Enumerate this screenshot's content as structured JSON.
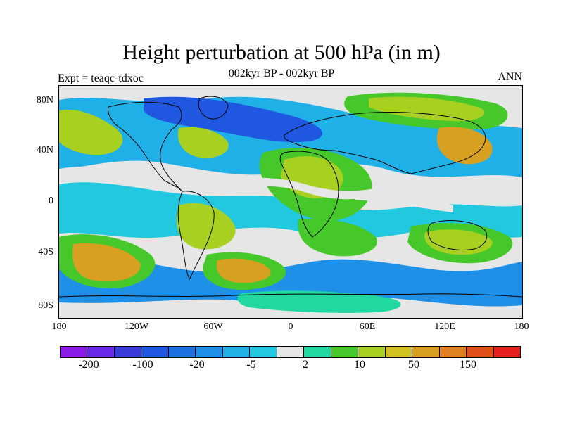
{
  "title": "Height perturbation at 500 hPa (in m)",
  "subtitle_left": "Expt = teaqc-tdxoc",
  "subtitle_center": "002kyr BP - 002kyr BP",
  "subtitle_right": "ANN",
  "lat_labels": [
    "80N",
    "40N",
    "0",
    "40S",
    "80S"
  ],
  "lon_labels": [
    "180",
    "120W",
    "60W",
    "0",
    "60E",
    "120E",
    "180"
  ],
  "colorbar": {
    "colors": [
      "#8b1be6",
      "#6a28e8",
      "#3b3bd9",
      "#1f57e0",
      "#1e6fe0",
      "#1e90e8",
      "#1fb0e8",
      "#21c8e0",
      "#e6e6e6",
      "#20d8a0",
      "#47c82a",
      "#a8d020",
      "#d0c020",
      "#d8a020",
      "#e08020",
      "#e05018",
      "#e62020"
    ],
    "labels": [
      "-200",
      "-100",
      "-20",
      "-5",
      "2",
      "10",
      "50",
      "150"
    ]
  },
  "colors": {
    "blue_dark": "#1f57e0",
    "blue": "#1e90e8",
    "cyan": "#21c8e0",
    "grey": "#e6e6e6",
    "green": "#20d8a0",
    "yellowgreen": "#a8d020",
    "orange": "#d8a020",
    "coastline": "#000000"
  }
}
